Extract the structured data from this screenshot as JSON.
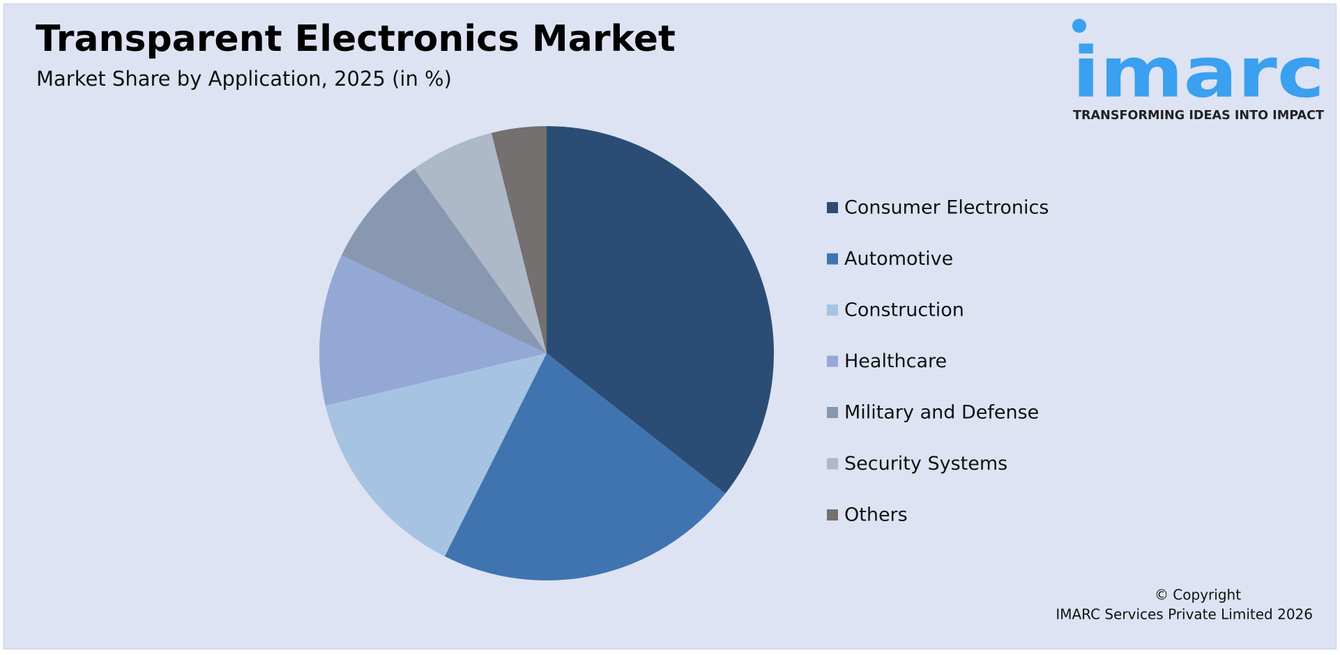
{
  "chart_data": {
    "type": "pie",
    "title": "Transparent Electronics Market",
    "subtitle": "Market Share by Application, 2025 (in %)",
    "categories": [
      "Consumer Electronics",
      "Automotive",
      "Construction",
      "Healthcare",
      "Military and Defense",
      "Security Systems",
      "Others"
    ],
    "values": [
      35.6,
      21.8,
      13.9,
      10.8,
      8.0,
      6.0,
      3.9
    ],
    "colors": [
      "#2b4d75",
      "#4074b0",
      "#a7c3e2",
      "#94a8d6",
      "#8898b0",
      "#adb8c8",
      "#747070"
    ],
    "legend": "right"
  },
  "logo": {
    "name": "imarc",
    "tagline": "TRANSFORMING IDEAS INTO IMPACT"
  },
  "copyright": [
    "© Copyright",
    "IMARC Services Private Limited 2026"
  ]
}
